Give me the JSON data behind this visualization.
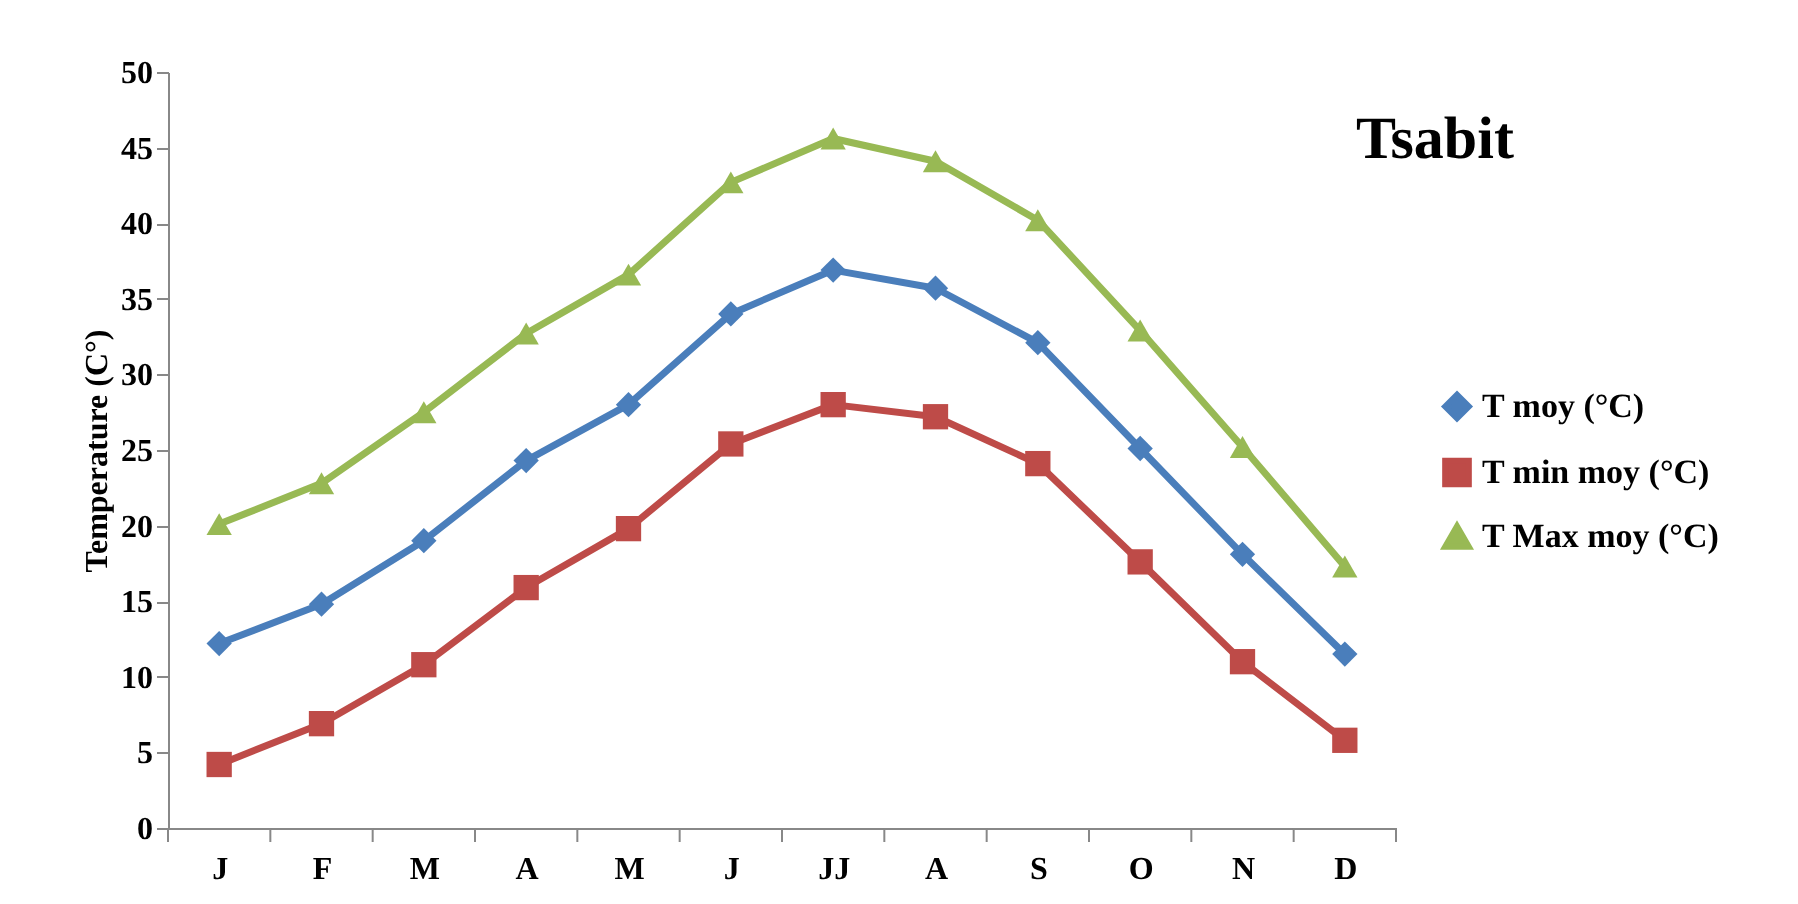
{
  "chart_data": {
    "type": "line",
    "title": "Tsabit",
    "ylabel": "Temperature (C°)",
    "categories": [
      "J",
      "F",
      "M",
      "A",
      "M",
      "J",
      "JJ",
      "A",
      "S",
      "O",
      "N",
      "D"
    ],
    "series": [
      {
        "name": "T moy (°C)",
        "color": "#4a7ebb",
        "marker": "diamond",
        "values": [
          12.2,
          14.8,
          19.0,
          24.3,
          28.0,
          34.0,
          36.9,
          35.7,
          32.1,
          25.1,
          18.1,
          11.5
        ]
      },
      {
        "name": "T min moy (°C)",
        "color": "#be4b48",
        "marker": "square",
        "values": [
          4.2,
          6.9,
          10.8,
          15.9,
          19.8,
          25.4,
          28.0,
          27.2,
          24.1,
          17.6,
          11.0,
          5.8
        ]
      },
      {
        "name": "T Max moy (°C)",
        "color": "#98b954",
        "marker": "triangle",
        "values": [
          20.1,
          22.8,
          27.5,
          32.7,
          36.6,
          42.7,
          45.6,
          44.1,
          40.2,
          32.9,
          25.2,
          17.3
        ]
      }
    ],
    "ylim": [
      0,
      50
    ],
    "yticks": [
      0,
      5,
      10,
      15,
      20,
      25,
      30,
      35,
      40,
      45,
      50
    ],
    "grid": false,
    "legend": "right"
  }
}
